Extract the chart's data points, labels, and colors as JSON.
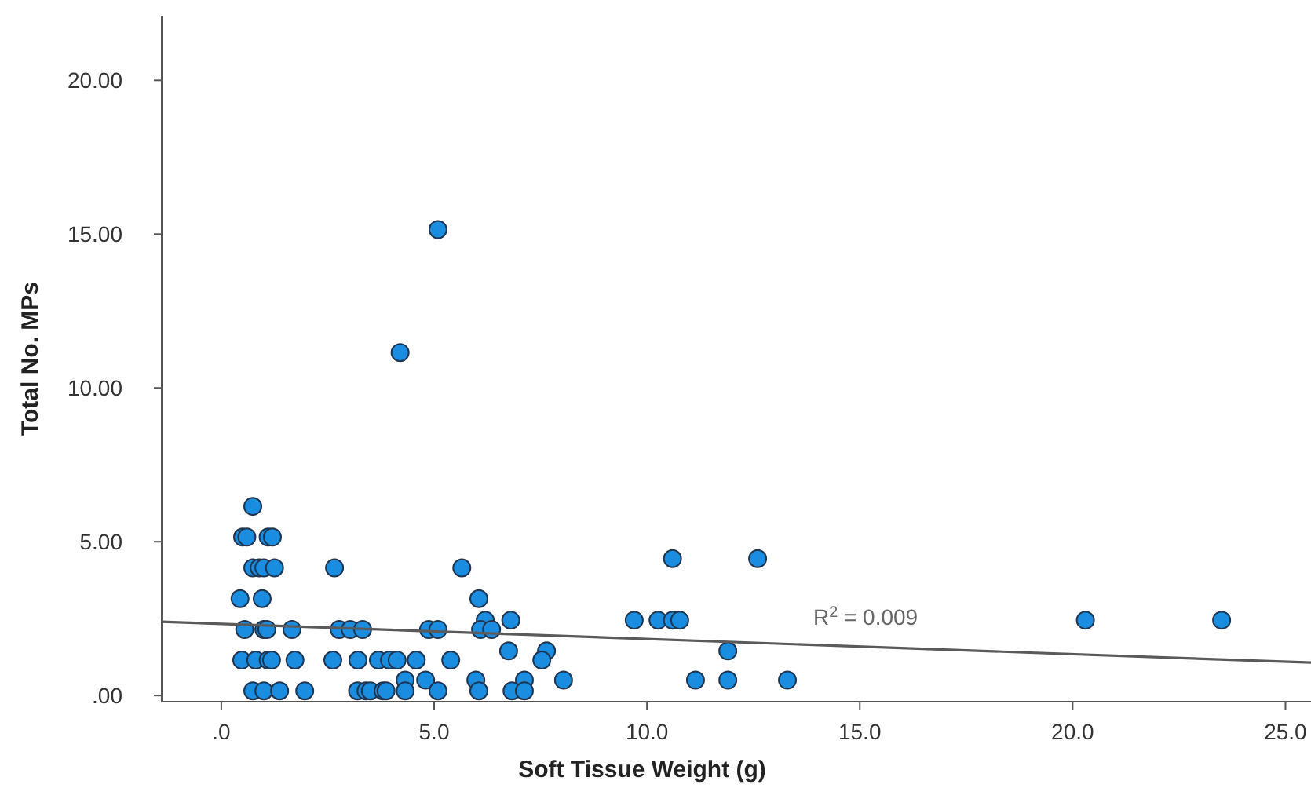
{
  "chart_data": {
    "type": "scatter",
    "xlabel": "Soft Tissue Weight (g)",
    "ylabel": "Total No. MPs",
    "xlim": [
      -1.4,
      25.6
    ],
    "ylim": [
      -0.2,
      22.1
    ],
    "xticks": [
      {
        "value": 0,
        "label": ".0"
      },
      {
        "value": 5,
        "label": "5.0"
      },
      {
        "value": 10,
        "label": "10.0"
      },
      {
        "value": 15,
        "label": "15.0"
      },
      {
        "value": 20,
        "label": "20.0"
      },
      {
        "value": 25,
        "label": "25.0"
      }
    ],
    "yticks": [
      {
        "value": 0,
        "label": ".00"
      },
      {
        "value": 5,
        "label": "5.00"
      },
      {
        "value": 10,
        "label": "10.00"
      },
      {
        "value": 15,
        "label": "15.00"
      },
      {
        "value": 20,
        "label": "20.00"
      }
    ],
    "grid": false,
    "series": [
      {
        "marker": "circle",
        "color": "#1a8de0",
        "x": [
          5.09,
          4.2,
          0.74,
          0.5,
          0.6,
          1.1,
          1.2,
          0.74,
          0.89,
          1.0,
          1.25,
          2.66,
          5.65,
          10.6,
          12.6,
          0.44,
          0.96,
          6.05,
          6.2,
          6.8,
          9.7,
          10.26,
          10.6,
          10.77,
          20.3,
          23.5,
          0.55,
          1.0,
          1.07,
          1.66,
          2.77,
          3.03,
          3.32,
          4.87,
          5.09,
          6.09,
          6.35,
          6.75,
          7.64,
          11.9,
          7.53,
          0.48,
          0.81,
          1.1,
          1.18,
          1.73,
          2.62,
          3.21,
          3.69,
          3.95,
          4.13,
          4.58,
          5.39,
          4.32,
          4.8,
          5.98,
          7.12,
          8.04,
          11.14,
          11.9,
          13.3,
          0.74,
          1.0,
          1.37,
          1.96,
          3.2,
          3.4,
          3.5,
          3.8,
          3.87,
          4.32,
          5.09,
          6.05,
          6.83,
          7.12
        ],
        "values": [
          15.15,
          11.15,
          6.15,
          5.15,
          5.15,
          5.15,
          5.15,
          4.15,
          4.15,
          4.15,
          4.15,
          4.15,
          4.15,
          4.45,
          4.45,
          3.15,
          3.15,
          3.15,
          2.45,
          2.45,
          2.45,
          2.45,
          2.45,
          2.45,
          2.45,
          2.45,
          2.15,
          2.15,
          2.15,
          2.15,
          2.15,
          2.15,
          2.15,
          2.15,
          2.15,
          2.15,
          2.15,
          1.45,
          1.45,
          1.45,
          1.15,
          1.15,
          1.15,
          1.15,
          1.15,
          1.15,
          1.15,
          1.15,
          1.15,
          1.15,
          1.15,
          1.15,
          1.15,
          0.5,
          0.5,
          0.5,
          0.5,
          0.5,
          0.5,
          0.5,
          0.5,
          0.15,
          0.15,
          0.15,
          0.15,
          0.15,
          0.15,
          0.15,
          0.15,
          0.15,
          0.15,
          0.15,
          0.15,
          0.15,
          0.15
        ]
      },
      {
        "type": "line",
        "color": "#5a5a5a",
        "x": [
          -1.4,
          25.6
        ],
        "values": [
          2.4,
          1.07
        ]
      }
    ],
    "annotations": [
      "R$^{2}$ = 0.009"
    ]
  }
}
